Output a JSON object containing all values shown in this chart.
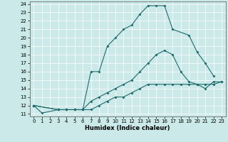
{
  "xlabel": "Humidex (Indice chaleur)",
  "bg_color": "#cce9e9",
  "line_color": "#1e6b6b",
  "xlim": [
    -0.5,
    23.5
  ],
  "ylim": [
    10.7,
    24.3
  ],
  "xticks": [
    0,
    1,
    2,
    3,
    4,
    5,
    6,
    7,
    8,
    9,
    10,
    11,
    12,
    13,
    14,
    15,
    16,
    17,
    18,
    19,
    20,
    21,
    22,
    23
  ],
  "yticks": [
    11,
    12,
    13,
    14,
    15,
    16,
    17,
    18,
    19,
    20,
    21,
    22,
    23,
    24
  ],
  "line1_x": [
    0,
    1,
    3,
    4,
    5,
    6,
    7,
    8,
    9,
    10,
    11,
    12,
    13,
    14,
    15,
    16,
    17,
    19,
    20,
    21,
    22
  ],
  "line1_y": [
    12,
    11.1,
    11.5,
    11.5,
    11.5,
    11.5,
    16,
    16,
    19,
    20,
    21,
    21.5,
    22.8,
    23.8,
    23.8,
    23.8,
    21,
    20.3,
    18.3,
    17,
    15.5
  ],
  "line2_x": [
    0,
    3,
    4,
    5,
    6,
    7,
    8,
    9,
    10,
    11,
    12,
    13,
    14,
    15,
    16,
    17,
    18,
    19,
    20,
    21,
    22,
    23
  ],
  "line2_y": [
    12,
    11.5,
    11.5,
    11.5,
    11.5,
    12.5,
    13,
    13.5,
    14,
    14.5,
    15,
    16,
    17,
    18,
    18.5,
    18,
    16,
    14.8,
    14.5,
    14,
    14.8,
    14.8
  ],
  "line3_x": [
    0,
    3,
    4,
    5,
    6,
    7,
    8,
    9,
    10,
    11,
    12,
    13,
    14,
    15,
    16,
    17,
    18,
    19,
    20,
    21,
    22,
    23
  ],
  "line3_y": [
    12,
    11.5,
    11.5,
    11.5,
    11.5,
    11.5,
    12,
    12.5,
    13,
    13,
    13.5,
    14,
    14.5,
    14.5,
    14.5,
    14.5,
    14.5,
    14.5,
    14.5,
    14.5,
    14.5,
    14.8
  ],
  "marker_size": 2.0,
  "line_width": 0.8,
  "xlabel_fontsize": 6.0,
  "tick_fontsize": 5.0
}
